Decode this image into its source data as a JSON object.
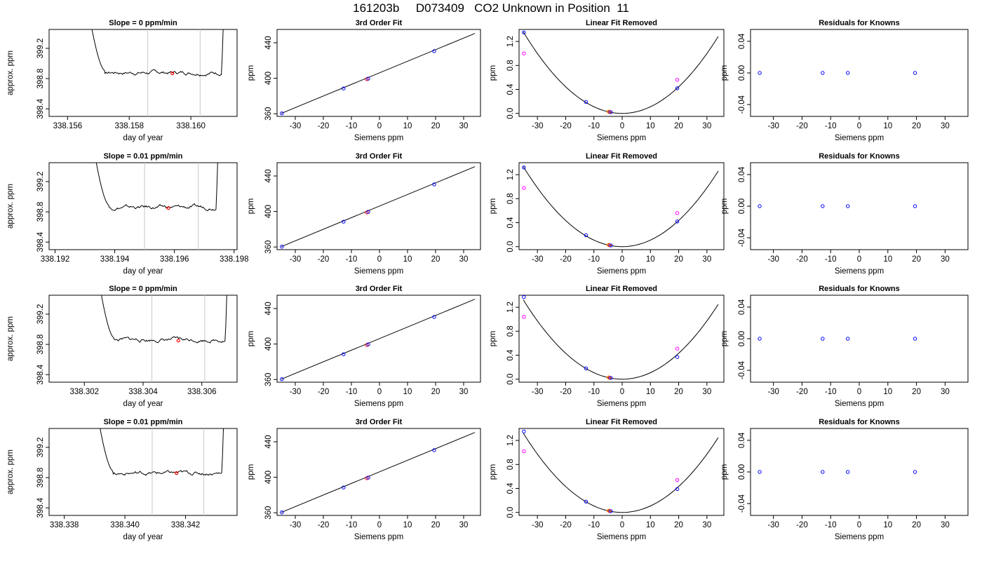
{
  "title": "161203b     D073409   CO2 Unknown in Position  11",
  "colors": {
    "axis": "#000000",
    "line": "#000000",
    "vline": "#c8c8c8",
    "blue": "#0000ff",
    "magenta": "#ff00ff",
    "red": "#ff0000",
    "orange": "#ffa500"
  },
  "chart_data": [
    {
      "type": "line",
      "title": "Slope =  0  ppm/min",
      "xlabel": "day of year",
      "ylabel": "approx. ppm",
      "xlim": [
        338.1554,
        338.1615
      ],
      "ylim": [
        398.3,
        399.45
      ],
      "xticks": [
        338.156,
        338.158,
        338.16
      ],
      "xtick_labels": [
        "338.156",
        "338.158",
        "338.160"
      ],
      "yticks": [
        398.4,
        398.8,
        399.2
      ],
      "ytick_labels": [
        "398.4",
        "398.8",
        "399.2"
      ],
      "vlines": [
        338.1586,
        338.1603
      ],
      "x_start": 338.1566,
      "x_end": 338.1611,
      "y_level": 398.88,
      "settle_end": 338.1572,
      "rise_start": 338.161,
      "point": {
        "x": 338.1594,
        "y": 398.87
      }
    },
    {
      "type": "line",
      "title": "Slope =  0.01  ppm/min",
      "xlabel": "day of year",
      "ylabel": "approx. ppm",
      "xlim": [
        338.1918,
        338.1981
      ],
      "ylim": [
        398.3,
        399.45
      ],
      "xticks": [
        338.192,
        338.194,
        338.196,
        338.198
      ],
      "xtick_labels": [
        "338.192",
        "338.194",
        "338.196",
        "338.198"
      ],
      "yticks": [
        398.4,
        398.8,
        399.2
      ],
      "ytick_labels": [
        "398.4",
        "398.8",
        "399.2"
      ],
      "vlines": [
        338.195,
        338.1968
      ],
      "x_start": 338.1932,
      "x_end": 338.1975,
      "y_level": 398.86,
      "settle_end": 338.1938,
      "rise_start": 338.1974,
      "point": {
        "x": 338.1958,
        "y": 398.85
      }
    },
    {
      "type": "line",
      "title": "Slope =  0  ppm/min",
      "xlabel": "day of year",
      "ylabel": "approx. ppm",
      "xlim": [
        338.3008,
        338.3072
      ],
      "ylim": [
        398.3,
        399.45
      ],
      "xticks": [
        338.302,
        338.304,
        338.306
      ],
      "xtick_labels": [
        "338.302",
        "338.304",
        "338.306"
      ],
      "yticks": [
        398.4,
        398.8,
        399.2
      ],
      "ytick_labels": [
        "398.4",
        "398.8",
        "399.2"
      ],
      "vlines": [
        338.3043,
        338.3061
      ],
      "x_start": 338.3024,
      "x_end": 338.3069,
      "y_level": 398.86,
      "settle_end": 338.303,
      "rise_start": 338.3068,
      "point": {
        "x": 338.3052,
        "y": 398.85
      }
    },
    {
      "type": "line",
      "title": "Slope =  0.01  ppm/min",
      "xlabel": "day of year",
      "ylabel": "approx. ppm",
      "xlim": [
        338.3375,
        338.3437
      ],
      "ylim": [
        398.3,
        399.45
      ],
      "xticks": [
        338.338,
        338.34,
        338.342
      ],
      "xtick_labels": [
        "338.338",
        "338.340",
        "338.342"
      ],
      "yticks": [
        398.4,
        398.8,
        399.2
      ],
      "ytick_labels": [
        "398.4",
        "398.8",
        "399.2"
      ],
      "vlines": [
        338.3409,
        338.3426
      ],
      "x_start": 338.339,
      "x_end": 338.3433,
      "y_level": 398.86,
      "settle_end": 338.3396,
      "rise_start": 338.3432,
      "point": {
        "x": 338.3417,
        "y": 398.86
      }
    },
    {
      "type": "scatter",
      "title": "3rd Order Fit",
      "xlabel": "Siemens ppm",
      "ylabel": "ppm",
      "xlim": [
        -36.5,
        36
      ],
      "ylim": [
        357,
        455
      ],
      "xticks": [
        -30,
        -20,
        -10,
        0,
        10,
        20,
        30
      ],
      "xtick_labels": [
        "-30",
        "-20",
        "-10",
        "0",
        "10",
        "20",
        "30"
      ],
      "yticks": [
        360,
        400,
        440
      ],
      "ytick_labels": [
        "360",
        "400",
        "440"
      ],
      "fit_line": [
        [
          -35,
          360.4
        ],
        [
          34,
          450.5
        ]
      ],
      "points": [
        {
          "x": -34.8,
          "y": 360.4,
          "color": "blue"
        },
        {
          "x": -12.8,
          "y": 388.5,
          "color": "blue"
        },
        {
          "x": -4.5,
          "y": 398.9,
          "color": "red"
        },
        {
          "x": -4.0,
          "y": 399.6,
          "color": "blue"
        },
        {
          "x": 19.5,
          "y": 430.5,
          "color": "blue"
        }
      ]
    },
    {
      "type": "scatter",
      "title": "3rd Order Fit",
      "xlabel": "Siemens ppm",
      "ylabel": "ppm",
      "xlim": [
        -36.5,
        36
      ],
      "ylim": [
        357,
        455
      ],
      "xticks": [
        -30,
        -20,
        -10,
        0,
        10,
        20,
        30
      ],
      "xtick_labels": [
        "-30",
        "-20",
        "-10",
        "0",
        "10",
        "20",
        "30"
      ],
      "yticks": [
        360,
        400,
        440
      ],
      "ytick_labels": [
        "360",
        "400",
        "440"
      ],
      "fit_line": [
        [
          -35,
          360.4
        ],
        [
          34,
          450.5
        ]
      ],
      "points": [
        {
          "x": -34.8,
          "y": 360.4,
          "color": "blue"
        },
        {
          "x": -12.8,
          "y": 388.5,
          "color": "blue"
        },
        {
          "x": -4.5,
          "y": 398.9,
          "color": "red"
        },
        {
          "x": -4.0,
          "y": 399.6,
          "color": "blue"
        },
        {
          "x": 19.5,
          "y": 430.5,
          "color": "blue"
        }
      ]
    },
    {
      "type": "scatter",
      "title": "3rd Order Fit",
      "xlabel": "Siemens ppm",
      "ylabel": "ppm",
      "xlim": [
        -36.5,
        36
      ],
      "ylim": [
        357,
        455
      ],
      "xticks": [
        -30,
        -20,
        -10,
        0,
        10,
        20,
        30
      ],
      "xtick_labels": [
        "-30",
        "-20",
        "-10",
        "0",
        "10",
        "20",
        "30"
      ],
      "yticks": [
        360,
        400,
        440
      ],
      "ytick_labels": [
        "360",
        "400",
        "440"
      ],
      "fit_line": [
        [
          -35,
          360.4
        ],
        [
          34,
          450.5
        ]
      ],
      "points": [
        {
          "x": -34.8,
          "y": 360.4,
          "color": "blue"
        },
        {
          "x": -12.8,
          "y": 388.5,
          "color": "blue"
        },
        {
          "x": -4.5,
          "y": 398.9,
          "color": "red"
        },
        {
          "x": -4.0,
          "y": 399.6,
          "color": "blue"
        },
        {
          "x": 19.5,
          "y": 430.5,
          "color": "blue"
        }
      ]
    },
    {
      "type": "scatter",
      "title": "3rd Order Fit",
      "xlabel": "Siemens ppm",
      "ylabel": "ppm",
      "xlim": [
        -36.5,
        36
      ],
      "ylim": [
        357,
        455
      ],
      "xticks": [
        -30,
        -20,
        -10,
        0,
        10,
        20,
        30
      ],
      "xtick_labels": [
        "-30",
        "-20",
        "-10",
        "0",
        "10",
        "20",
        "30"
      ],
      "yticks": [
        360,
        400,
        440
      ],
      "ytick_labels": [
        "360",
        "400",
        "440"
      ],
      "fit_line": [
        [
          -35,
          360.4
        ],
        [
          34,
          450.5
        ]
      ],
      "points": [
        {
          "x": -34.8,
          "y": 360.4,
          "color": "blue"
        },
        {
          "x": -12.8,
          "y": 388.5,
          "color": "blue"
        },
        {
          "x": -4.5,
          "y": 398.9,
          "color": "red"
        },
        {
          "x": -4.0,
          "y": 399.6,
          "color": "blue"
        },
        {
          "x": 19.5,
          "y": 430.5,
          "color": "blue"
        }
      ]
    },
    {
      "type": "scatter",
      "title": "Linear Fit Removed",
      "xlabel": "Siemens ppm",
      "ylabel": "ppm",
      "xlim": [
        -36.5,
        36
      ],
      "ylim": [
        -0.05,
        1.4
      ],
      "xticks": [
        -30,
        -20,
        -10,
        0,
        10,
        20,
        30
      ],
      "xtick_labels": [
        "-30",
        "-20",
        "-10",
        "0",
        "10",
        "20",
        "30"
      ],
      "yticks": [
        0,
        0.4,
        0.8,
        1.2
      ],
      "ytick_labels": [
        "0.0",
        "0.4",
        "0.8",
        "1.2"
      ],
      "curve": {
        "a": 0.00111,
        "x0": 0,
        "c": 0,
        "from": -35,
        "to": 34
      },
      "points": [
        {
          "x": -34.8,
          "y": 1.35,
          "color": "blue"
        },
        {
          "x": -34.8,
          "y": 1.0,
          "color": "magenta"
        },
        {
          "x": -12.8,
          "y": 0.19,
          "color": "blue"
        },
        {
          "x": -4.8,
          "y": 0.03,
          "color": "orange"
        },
        {
          "x": -4.5,
          "y": 0.025,
          "color": "red"
        },
        {
          "x": -4.0,
          "y": 0.02,
          "color": "blue"
        },
        {
          "x": 19.5,
          "y": 0.42,
          "color": "blue"
        },
        {
          "x": 19.5,
          "y": 0.56,
          "color": "magenta"
        }
      ]
    },
    {
      "type": "scatter",
      "title": "Linear Fit Removed",
      "xlabel": "Siemens ppm",
      "ylabel": "ppm",
      "xlim": [
        -36.5,
        36
      ],
      "ylim": [
        -0.05,
        1.4
      ],
      "xticks": [
        -30,
        -20,
        -10,
        0,
        10,
        20,
        30
      ],
      "xtick_labels": [
        "-30",
        "-20",
        "-10",
        "0",
        "10",
        "20",
        "30"
      ],
      "yticks": [
        0,
        0.4,
        0.8,
        1.2
      ],
      "ytick_labels": [
        "0.0",
        "0.4",
        "0.8",
        "1.2"
      ],
      "curve": {
        "a": 0.00109,
        "x0": 0,
        "c": 0,
        "from": -35,
        "to": 34
      },
      "points": [
        {
          "x": -34.8,
          "y": 1.32,
          "color": "blue"
        },
        {
          "x": -34.8,
          "y": 0.98,
          "color": "magenta"
        },
        {
          "x": -12.8,
          "y": 0.19,
          "color": "blue"
        },
        {
          "x": -4.8,
          "y": 0.03,
          "color": "orange"
        },
        {
          "x": -4.5,
          "y": 0.025,
          "color": "red"
        },
        {
          "x": -4.0,
          "y": 0.02,
          "color": "blue"
        },
        {
          "x": 19.5,
          "y": 0.42,
          "color": "blue"
        },
        {
          "x": 19.5,
          "y": 0.56,
          "color": "magenta"
        }
      ]
    },
    {
      "type": "scatter",
      "title": "Linear Fit Removed",
      "xlabel": "Siemens ppm",
      "ylabel": "ppm",
      "xlim": [
        -36.5,
        36
      ],
      "ylim": [
        -0.05,
        1.4
      ],
      "xticks": [
        -30,
        -20,
        -10,
        0,
        10,
        20,
        30
      ],
      "xtick_labels": [
        "-30",
        "-20",
        "-10",
        "0",
        "10",
        "20",
        "30"
      ],
      "yticks": [
        0,
        0.4,
        0.8,
        1.2
      ],
      "ytick_labels": [
        "0.0",
        "0.4",
        "0.8",
        "1.2"
      ],
      "curve": {
        "a": 0.00108,
        "x0": 0,
        "c": 0,
        "from": -35,
        "to": 34
      },
      "points": [
        {
          "x": -34.8,
          "y": 1.37,
          "color": "blue"
        },
        {
          "x": -34.8,
          "y": 1.04,
          "color": "magenta"
        },
        {
          "x": -12.8,
          "y": 0.18,
          "color": "blue"
        },
        {
          "x": -4.8,
          "y": 0.03,
          "color": "orange"
        },
        {
          "x": -4.5,
          "y": 0.025,
          "color": "red"
        },
        {
          "x": -4.0,
          "y": 0.02,
          "color": "blue"
        },
        {
          "x": 19.5,
          "y": 0.37,
          "color": "blue"
        },
        {
          "x": 19.5,
          "y": 0.51,
          "color": "magenta"
        }
      ]
    },
    {
      "type": "scatter",
      "title": "Linear Fit Removed",
      "xlabel": "Siemens ppm",
      "ylabel": "ppm",
      "xlim": [
        -36.5,
        36
      ],
      "ylim": [
        -0.05,
        1.4
      ],
      "xticks": [
        -30,
        -20,
        -10,
        0,
        10,
        20,
        30
      ],
      "xtick_labels": [
        "-30",
        "-20",
        "-10",
        "0",
        "10",
        "20",
        "30"
      ],
      "yticks": [
        0,
        0.4,
        0.8,
        1.2
      ],
      "ytick_labels": [
        "0.0",
        "0.4",
        "0.8",
        "1.2"
      ],
      "curve": {
        "a": 0.00108,
        "x0": 0,
        "c": 0,
        "from": -35,
        "to": 34
      },
      "points": [
        {
          "x": -34.8,
          "y": 1.35,
          "color": "blue"
        },
        {
          "x": -34.8,
          "y": 1.02,
          "color": "magenta"
        },
        {
          "x": -12.8,
          "y": 0.18,
          "color": "blue"
        },
        {
          "x": -4.8,
          "y": 0.03,
          "color": "orange"
        },
        {
          "x": -4.5,
          "y": 0.025,
          "color": "red"
        },
        {
          "x": -4.0,
          "y": 0.02,
          "color": "blue"
        },
        {
          "x": 19.5,
          "y": 0.39,
          "color": "blue"
        },
        {
          "x": 19.5,
          "y": 0.54,
          "color": "magenta"
        }
      ]
    },
    {
      "type": "scatter",
      "title": "Residuals for Knowns",
      "xlabel": "Siemens ppm",
      "ylabel": "ppm",
      "xlim": [
        -38,
        38
      ],
      "ylim": [
        -0.055,
        0.055
      ],
      "xticks": [
        -30,
        -20,
        -10,
        0,
        10,
        20,
        30
      ],
      "xtick_labels": [
        "-30",
        "-20",
        "-10",
        "0",
        "10",
        "20",
        "30"
      ],
      "yticks": [
        -0.04,
        0,
        0.04
      ],
      "ytick_labels": [
        "-0.04",
        "0.00",
        "0.04"
      ],
      "points": [
        {
          "x": -34.8,
          "y": 0,
          "color": "blue"
        },
        {
          "x": -12.8,
          "y": 0,
          "color": "blue"
        },
        {
          "x": -4.0,
          "y": 0,
          "color": "blue"
        },
        {
          "x": 19.5,
          "y": 0,
          "color": "blue"
        }
      ]
    },
    {
      "type": "scatter",
      "title": "Residuals for Knowns",
      "xlabel": "Siemens ppm",
      "ylabel": "ppm",
      "xlim": [
        -38,
        38
      ],
      "ylim": [
        -0.055,
        0.055
      ],
      "xticks": [
        -30,
        -20,
        -10,
        0,
        10,
        20,
        30
      ],
      "xtick_labels": [
        "-30",
        "-20",
        "-10",
        "0",
        "10",
        "20",
        "30"
      ],
      "yticks": [
        -0.04,
        0,
        0.04
      ],
      "ytick_labels": [
        "-0.04",
        "0.00",
        "0.04"
      ],
      "points": [
        {
          "x": -34.8,
          "y": 0,
          "color": "blue"
        },
        {
          "x": -12.8,
          "y": 0,
          "color": "blue"
        },
        {
          "x": -4.0,
          "y": 0,
          "color": "blue"
        },
        {
          "x": 19.5,
          "y": 0,
          "color": "blue"
        }
      ]
    },
    {
      "type": "scatter",
      "title": "Residuals for Knowns",
      "xlabel": "Siemens ppm",
      "ylabel": "ppm",
      "xlim": [
        -38,
        38
      ],
      "ylim": [
        -0.055,
        0.055
      ],
      "xticks": [
        -30,
        -20,
        -10,
        0,
        10,
        20,
        30
      ],
      "xtick_labels": [
        "-30",
        "-20",
        "-10",
        "0",
        "10",
        "20",
        "30"
      ],
      "yticks": [
        -0.04,
        0,
        0.04
      ],
      "ytick_labels": [
        "-0.04",
        "0.00",
        "0.04"
      ],
      "points": [
        {
          "x": -34.8,
          "y": 0,
          "color": "blue"
        },
        {
          "x": -12.8,
          "y": 0,
          "color": "blue"
        },
        {
          "x": -4.0,
          "y": 0,
          "color": "blue"
        },
        {
          "x": 19.5,
          "y": 0,
          "color": "blue"
        }
      ]
    },
    {
      "type": "scatter",
      "title": "Residuals for Knowns",
      "xlabel": "Siemens ppm",
      "ylabel": "ppm",
      "xlim": [
        -38,
        38
      ],
      "ylim": [
        -0.055,
        0.055
      ],
      "xticks": [
        -30,
        -20,
        -10,
        0,
        10,
        20,
        30
      ],
      "xtick_labels": [
        "-30",
        "-20",
        "-10",
        "0",
        "10",
        "20",
        "30"
      ],
      "yticks": [
        -0.04,
        0,
        0.04
      ],
      "ytick_labels": [
        "-0.04",
        "0.00",
        "0.04"
      ],
      "points": [
        {
          "x": -34.8,
          "y": 0,
          "color": "blue"
        },
        {
          "x": -12.8,
          "y": 0,
          "color": "blue"
        },
        {
          "x": -4.0,
          "y": 0,
          "color": "blue"
        },
        {
          "x": 19.5,
          "y": 0,
          "color": "blue"
        }
      ]
    }
  ]
}
